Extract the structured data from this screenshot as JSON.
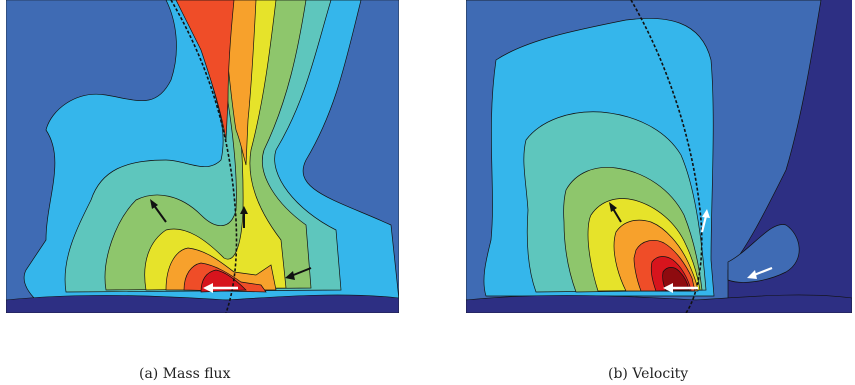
{
  "figure": {
    "panels": [
      {
        "id": "a",
        "caption": "(a) Mass flux"
      },
      {
        "id": "b",
        "caption": "(b) Velocity"
      }
    ]
  },
  "colors": {
    "background": "#ffffff",
    "level_0": "#2d2f83",
    "level_1": "#3f6bb4",
    "level_2": "#35b6eb",
    "level_3": "#5ec6bd",
    "level_4": "#8ec66c",
    "level_5": "#e6e32a",
    "level_6": "#f7a12c",
    "level_7": "#ef4d28",
    "level_8": "#d7141d",
    "level_9": "#8e0b0f",
    "contour_line": "#111111",
    "arrow_dark": "#111111",
    "arrow_light": "#ffffff"
  }
}
